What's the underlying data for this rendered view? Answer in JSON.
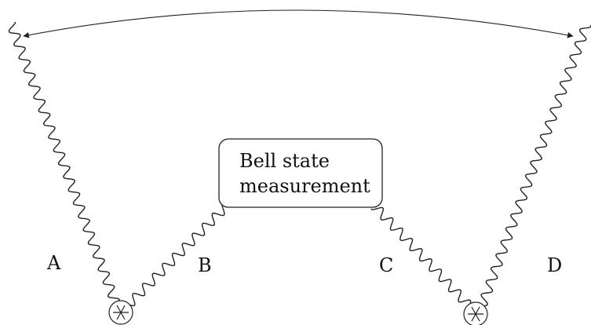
{
  "box": {
    "line1": "Bell state",
    "line2": "measurement"
  },
  "labels": {
    "a": "A",
    "b": "B",
    "c": "C",
    "d": "D"
  }
}
